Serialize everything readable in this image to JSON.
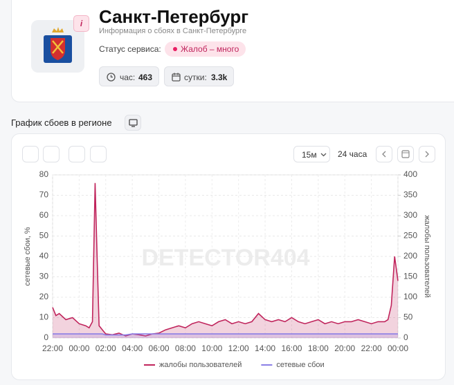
{
  "header": {
    "title": "Санкт-Петербург",
    "subtitle": "Информация о сбоях в Санкт-Петербурге",
    "status_label": "Статус сервиса:",
    "status": "Жалоб – много",
    "info_badge": "i",
    "stats": [
      {
        "label": "час:",
        "value": "463"
      },
      {
        "label": "сутки:",
        "value": "3.3k"
      }
    ]
  },
  "section_title": "График сбоев в регионе",
  "toolbar": {
    "interval": "15м",
    "period": "24 часа"
  },
  "chart_data": {
    "type": "line",
    "watermark": "DETECTOR404",
    "y_label": "сетевые сбои, %",
    "y2_label": "жалобы пользователей",
    "x": [
      0,
      0.25,
      0.5,
      1,
      1.5,
      2,
      2.5,
      2.75,
      3,
      3.2,
      3.35,
      3.5,
      3.75,
      4,
      4.5,
      5,
      5.5,
      6,
      6.5,
      7,
      7.5,
      8,
      8.5,
      9,
      9.5,
      10,
      10.5,
      11,
      11.5,
      12,
      12.5,
      13,
      13.5,
      14,
      14.5,
      15,
      15.5,
      16,
      16.5,
      17,
      17.5,
      18,
      18.5,
      19,
      19.5,
      20,
      20.5,
      21,
      21.5,
      22,
      22.5,
      23,
      23.5,
      24,
      24.5,
      25,
      25.25,
      25.5,
      25.75,
      26
    ],
    "xlim": [
      0,
      26
    ],
    "xticks": [
      {
        "value": 0,
        "label": "22:00"
      },
      {
        "value": 2,
        "label": "00:00"
      },
      {
        "value": 4,
        "label": "02:00"
      },
      {
        "value": 6,
        "label": "04:00"
      },
      {
        "value": 8,
        "label": "06:00"
      },
      {
        "value": 10,
        "label": "08:00"
      },
      {
        "value": 12,
        "label": "10:00"
      },
      {
        "value": 14,
        "label": "12:00"
      },
      {
        "value": 16,
        "label": "14:00"
      },
      {
        "value": 18,
        "label": "16:00"
      },
      {
        "value": 20,
        "label": "18:00"
      },
      {
        "value": 22,
        "label": "20:00"
      },
      {
        "value": 24,
        "label": "22:00"
      },
      {
        "value": 26,
        "label": "00:00"
      }
    ],
    "ylim": [
      0,
      80
    ],
    "yticks": [
      0,
      10,
      20,
      30,
      40,
      50,
      60,
      70,
      80
    ],
    "y2lim": [
      0,
      400
    ],
    "y2ticks": [
      0,
      50,
      100,
      150,
      200,
      250,
      300,
      350,
      400
    ],
    "grid": true,
    "legend": "bottom",
    "series": [
      {
        "name": "жалобы пользователей",
        "color": "#c0245c",
        "axis": "y2",
        "values": [
          75,
          55,
          60,
          45,
          50,
          35,
          30,
          25,
          40,
          380,
          200,
          30,
          20,
          10,
          8,
          12,
          5,
          10,
          8,
          5,
          10,
          12,
          20,
          25,
          30,
          25,
          35,
          40,
          35,
          30,
          40,
          45,
          35,
          40,
          35,
          40,
          60,
          45,
          40,
          45,
          40,
          50,
          40,
          35,
          40,
          45,
          35,
          40,
          35,
          40,
          40,
          45,
          40,
          35,
          40,
          40,
          45,
          80,
          200,
          140
        ]
      },
      {
        "name": "сетевые сбои",
        "color": "#8a7ee6",
        "values": [
          2,
          2,
          2,
          2,
          2,
          2,
          2,
          2,
          2,
          2,
          2,
          2,
          2,
          1.5,
          1.5,
          1.5,
          1.5,
          2,
          2,
          2,
          2,
          2,
          2,
          2,
          2,
          2,
          2,
          2,
          2,
          2,
          2,
          2,
          2,
          2,
          2,
          2,
          2,
          2,
          2,
          2,
          2,
          2,
          2,
          2,
          2,
          2,
          2,
          2,
          2,
          2,
          2,
          2,
          2,
          2,
          2,
          2,
          2,
          2,
          2,
          2
        ]
      }
    ]
  }
}
